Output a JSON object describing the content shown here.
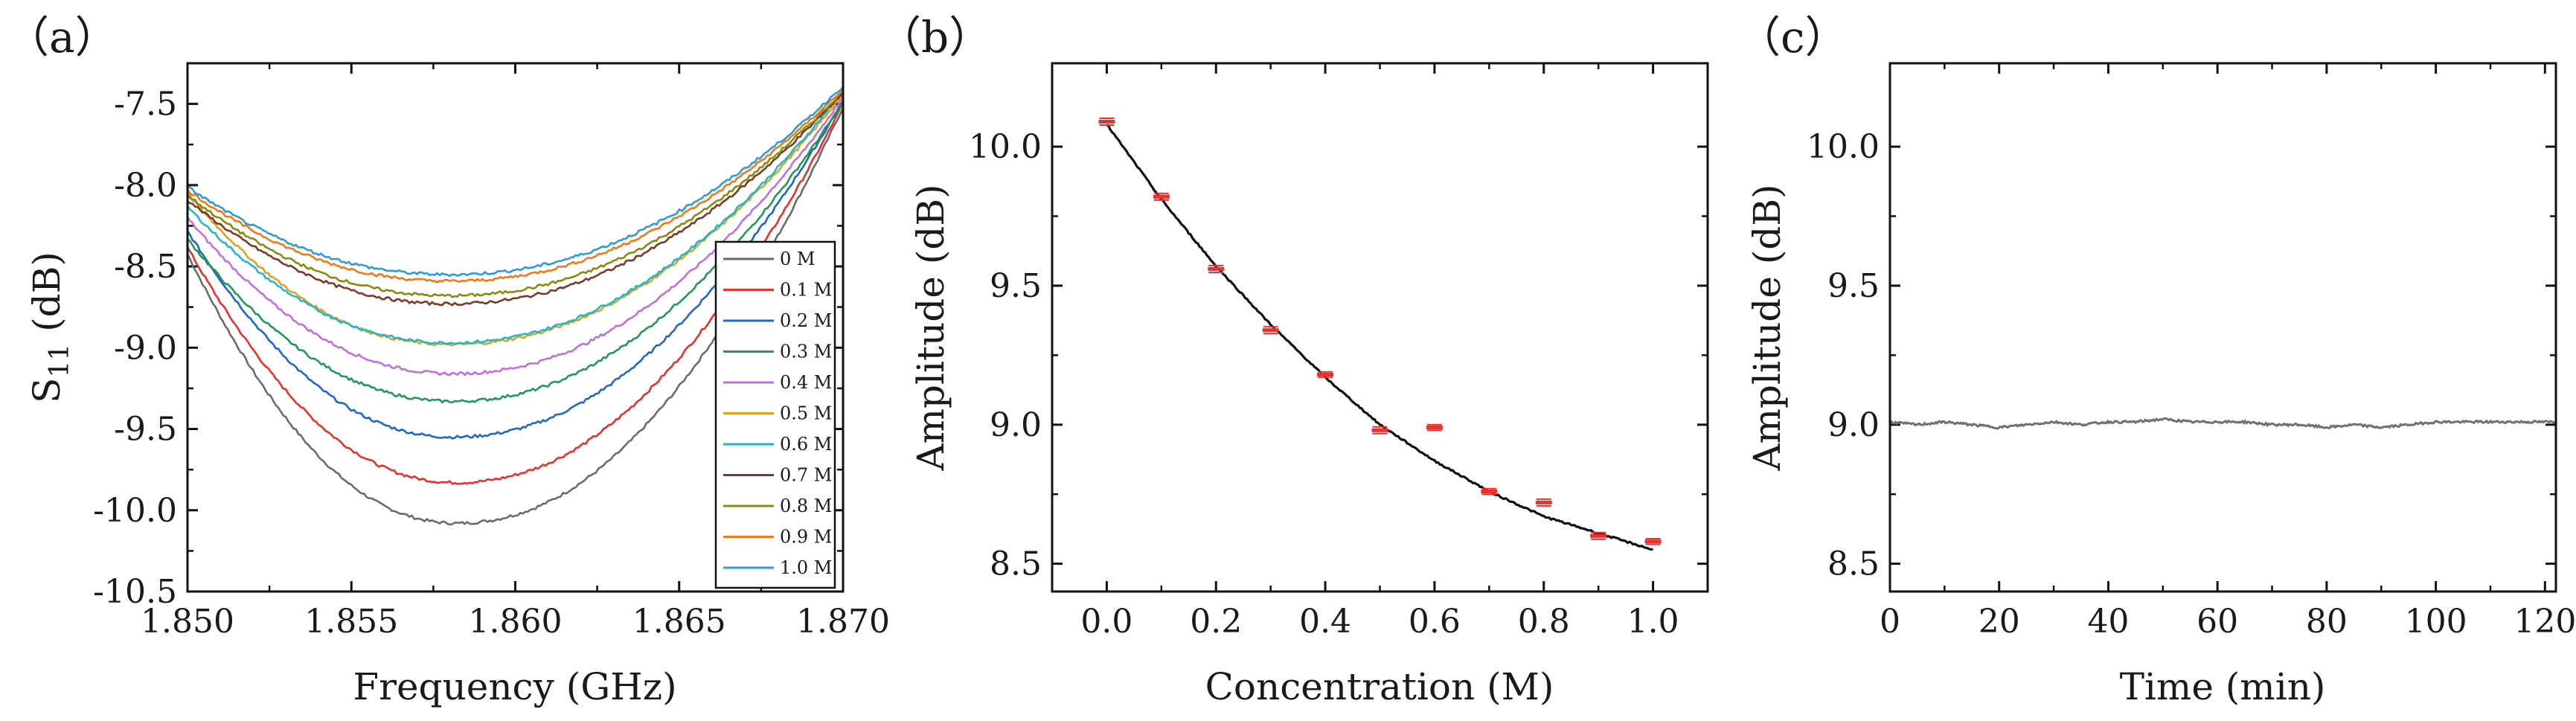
{
  "figure": {
    "panel_labels": [
      "（a）",
      "（b）",
      "（c）"
    ]
  },
  "chart_data": [
    {
      "panel": "(a)",
      "type": "line",
      "title": "",
      "xlabel": "Frequency (GHz)",
      "ylabel": "S11 (dB)",
      "ylabel_main": "S",
      "ylabel_sub": "11",
      "ylabel_unit": " (dB)",
      "xlim": [
        1.85,
        1.87
      ],
      "ylim": [
        -10.5,
        -7.25
      ],
      "xticks": [
        1.85,
        1.855,
        1.86,
        1.865,
        1.87
      ],
      "xtick_labels": [
        "1.850",
        "1.855",
        "1.860",
        "1.865",
        "1.870"
      ],
      "yticks": [
        -10.5,
        -10.0,
        -9.5,
        -9.0,
        -8.5,
        -8.0,
        -7.5
      ],
      "ytick_labels": [
        "-10.5",
        "-10.0",
        "-9.5",
        "-9.0",
        "-8.5",
        "-8.0",
        "-7.5"
      ],
      "legend": "bottom-right",
      "series": [
        {
          "name": "0 M",
          "color": "#6b6b6b",
          "minimum": [
            1.8582,
            -10.08
          ],
          "start_value": -8.42,
          "end_value": -7.52
        },
        {
          "name": "0.1 M",
          "color": "#e8312c",
          "minimum": [
            1.8582,
            -9.83
          ],
          "start_value": -8.38,
          "end_value": -7.5
        },
        {
          "name": "0.2 M",
          "color": "#1f66c9",
          "minimum": [
            1.8581,
            -9.55
          ],
          "start_value": -8.28,
          "end_value": -7.48
        },
        {
          "name": "0.3 M",
          "color": "#1f9a55",
          "minimum": [
            1.8581,
            -9.33
          ],
          "start_value": -8.33,
          "end_value": -7.49
        },
        {
          "name": "0.4 M",
          "color": "#c070d8",
          "minimum": [
            1.8581,
            -9.16
          ],
          "start_value": -8.2,
          "end_value": -7.46
        },
        {
          "name": "0.5 M",
          "color": "#e0a020",
          "minimum": [
            1.858,
            -8.98
          ],
          "start_value": -8.05,
          "end_value": -7.44
        },
        {
          "name": "0.6 M",
          "color": "#22b8c8",
          "minimum": [
            1.858,
            -8.97
          ],
          "start_value": -8.13,
          "end_value": -7.42
        },
        {
          "name": "0.7 M",
          "color": "#7a3a2a",
          "minimum": [
            1.858,
            -8.73
          ],
          "start_value": -8.09,
          "end_value": -7.43
        },
        {
          "name": "0.8 M",
          "color": "#8a8a10",
          "minimum": [
            1.858,
            -8.68
          ],
          "start_value": -8.06,
          "end_value": -7.42
        },
        {
          "name": "0.9 M",
          "color": "#f07a18",
          "minimum": [
            1.858,
            -8.59
          ],
          "start_value": -8.03,
          "end_value": -7.41
        },
        {
          "name": "1.0 M",
          "color": "#2f9ad8",
          "minimum": [
            1.858,
            -8.55
          ],
          "start_value": -8.01,
          "end_value": -7.39
        }
      ]
    },
    {
      "panel": "(b)",
      "type": "scatter",
      "title": "",
      "xlabel": "Concentration (M)",
      "ylabel": "Amplitude (dB)",
      "xlim": [
        -0.1,
        1.1
      ],
      "ylim": [
        8.4,
        10.3
      ],
      "xticks": [
        0.0,
        0.2,
        0.4,
        0.6,
        0.8,
        1.0
      ],
      "xtick_labels": [
        "0.0",
        "0.2",
        "0.4",
        "0.6",
        "0.8",
        "1.0"
      ],
      "yticks": [
        8.5,
        9.0,
        9.5,
        10.0
      ],
      "ytick_labels": [
        "8.5",
        "9.0",
        "9.5",
        "10.0"
      ],
      "points_color": "#e8312c",
      "fit_color": "#111111",
      "points": {
        "x": [
          0.0,
          0.1,
          0.2,
          0.3,
          0.4,
          0.5,
          0.6,
          0.7,
          0.8,
          0.9,
          1.0
        ],
        "y": [
          10.09,
          9.82,
          9.56,
          9.34,
          9.18,
          8.98,
          8.99,
          8.76,
          8.72,
          8.6,
          8.58
        ],
        "err": [
          0.012,
          0.012,
          0.012,
          0.012,
          0.01,
          0.012,
          0.01,
          0.01,
          0.012,
          0.012,
          0.01
        ]
      },
      "fit": {
        "form": "exponential decay",
        "x": [
          0.0,
          0.1,
          0.2,
          0.3,
          0.4,
          0.5,
          0.6,
          0.7,
          0.8,
          0.9,
          1.0
        ],
        "y": [
          10.08,
          9.81,
          9.57,
          9.36,
          9.17,
          9.0,
          8.87,
          8.76,
          8.67,
          8.61,
          8.55
        ]
      }
    },
    {
      "panel": "(c)",
      "type": "line",
      "title": "",
      "xlabel": "Time (min)",
      "ylabel": "Amplitude (dB)",
      "xlim": [
        0,
        122
      ],
      "ylim": [
        8.4,
        10.3
      ],
      "xticks": [
        0,
        20,
        40,
        60,
        80,
        100,
        120
      ],
      "xtick_labels": [
        "0",
        "20",
        "40",
        "60",
        "80",
        "100",
        "120"
      ],
      "yticks": [
        8.5,
        9.0,
        9.5,
        10.0
      ],
      "ytick_labels": [
        "8.5",
        "9.0",
        "9.5",
        "10.0"
      ],
      "series": [
        {
          "name": "Amplitude",
          "color": "#707070",
          "x": [
            0,
            5,
            10,
            15,
            20,
            25,
            30,
            35,
            40,
            45,
            50,
            55,
            60,
            65,
            70,
            75,
            80,
            85,
            90,
            95,
            100,
            105,
            110,
            115,
            120,
            122
          ],
          "y": [
            9.01,
            9.0,
            9.01,
            9.0,
            8.99,
            9.0,
            9.01,
            9.0,
            9.01,
            9.01,
            9.02,
            9.01,
            9.01,
            9.01,
            9.0,
            9.0,
            8.99,
            9.0,
            8.99,
            9.0,
            9.01,
            9.01,
            9.01,
            9.01,
            9.01,
            9.01
          ]
        }
      ]
    }
  ]
}
